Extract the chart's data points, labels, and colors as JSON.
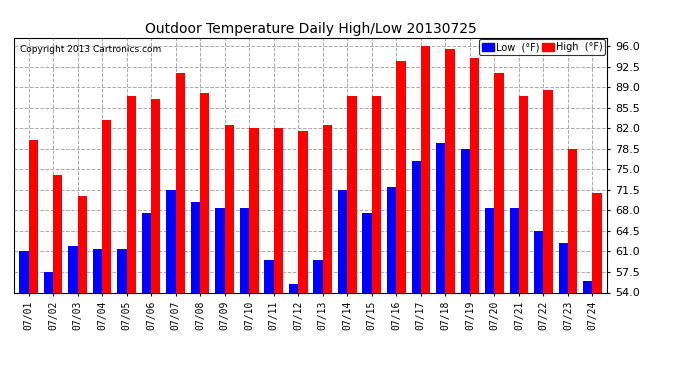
{
  "title": "Outdoor Temperature Daily High/Low 20130725",
  "copyright": "Copyright 2013 Cartronics.com",
  "legend_low": "Low  (°F)",
  "legend_high": "High  (°F)",
  "dates": [
    "07/01",
    "07/02",
    "07/03",
    "07/04",
    "07/05",
    "07/06",
    "07/07",
    "07/08",
    "07/09",
    "07/10",
    "07/11",
    "07/12",
    "07/13",
    "07/14",
    "07/15",
    "07/16",
    "07/17",
    "07/18",
    "07/19",
    "07/20",
    "07/21",
    "07/22",
    "07/23",
    "07/24"
  ],
  "highs": [
    80.0,
    74.0,
    70.5,
    83.5,
    87.5,
    87.0,
    91.5,
    88.0,
    82.5,
    82.0,
    82.0,
    81.5,
    82.5,
    87.5,
    87.5,
    93.5,
    96.0,
    95.5,
    94.0,
    91.5,
    87.5,
    88.5,
    78.5,
    71.0
  ],
  "lows": [
    61.0,
    57.5,
    62.0,
    61.5,
    61.5,
    67.5,
    71.5,
    69.5,
    68.5,
    68.5,
    59.5,
    55.5,
    59.5,
    71.5,
    67.5,
    72.0,
    76.5,
    79.5,
    78.5,
    68.5,
    68.5,
    64.5,
    62.5,
    56.0
  ],
  "high_color": "#ff0000",
  "low_color": "#0000ff",
  "bg_color": "#ffffff",
  "grid_color": "#aaaaaa",
  "title_color": "#000000",
  "ymin": 54.0,
  "ymax": 97.5,
  "yticks": [
    54.0,
    57.5,
    61.0,
    64.5,
    68.0,
    71.5,
    75.0,
    78.5,
    82.0,
    85.5,
    89.0,
    92.5,
    96.0
  ]
}
